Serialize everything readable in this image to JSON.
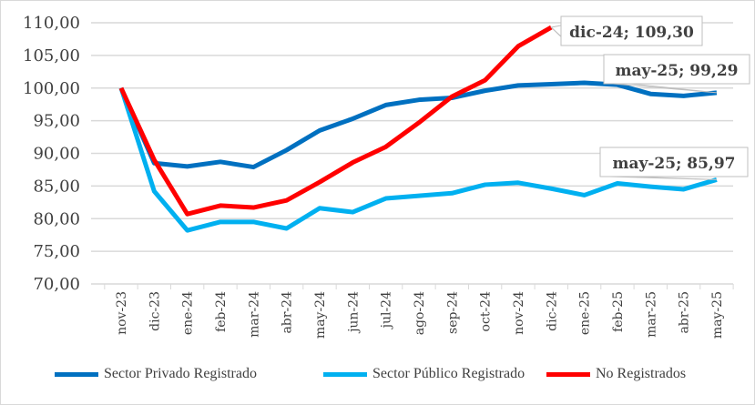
{
  "chart_data": {
    "type": "line",
    "title": "",
    "xlabel": "",
    "ylabel": "",
    "ylim": [
      70,
      110
    ],
    "yticks": [
      "70,00",
      "75,00",
      "80,00",
      "85,00",
      "90,00",
      "95,00",
      "100,00",
      "105,00",
      "110,00"
    ],
    "grid": true,
    "legend_position": "bottom",
    "categories": [
      "nov-23",
      "dic-23",
      "ene-24",
      "feb-24",
      "mar-24",
      "abr-24",
      "may-24",
      "jun-24",
      "jul-24",
      "ago-24",
      "sep-24",
      "oct-24",
      "nov-24",
      "dic-24",
      "ene-25",
      "feb-25",
      "mar-25",
      "abr-25",
      "may-25"
    ],
    "series": [
      {
        "name": "Sector Privado Registrado",
        "color": "#0070C0",
        "values": [
          100,
          88.5,
          88.0,
          88.7,
          87.9,
          90.5,
          93.5,
          95.3,
          97.4,
          98.2,
          98.5,
          99.6,
          100.4,
          100.6,
          100.8,
          100.5,
          99.1,
          98.8,
          99.29
        ]
      },
      {
        "name": "Sector Público Registrado",
        "color": "#00B0F0",
        "values": [
          100,
          84.2,
          78.2,
          79.5,
          79.5,
          78.5,
          81.6,
          81.0,
          83.1,
          83.5,
          83.9,
          85.2,
          85.5,
          84.6,
          83.6,
          85.4,
          84.9,
          84.5,
          85.97
        ]
      },
      {
        "name": "No Registrados",
        "color": "#FF0000",
        "values": [
          100,
          89.0,
          80.7,
          82.0,
          81.7,
          82.8,
          85.6,
          88.6,
          91.0,
          94.7,
          98.7,
          101.2,
          106.4,
          109.3,
          null,
          null,
          null,
          null,
          null
        ]
      }
    ],
    "annotations": [
      {
        "series": 2,
        "index": 13,
        "text": "dic-24;  109,30"
      },
      {
        "series": 0,
        "index": 18,
        "text": "may-25;  99,29"
      },
      {
        "series": 1,
        "index": 18,
        "text": "may-25;  85,97"
      }
    ]
  }
}
